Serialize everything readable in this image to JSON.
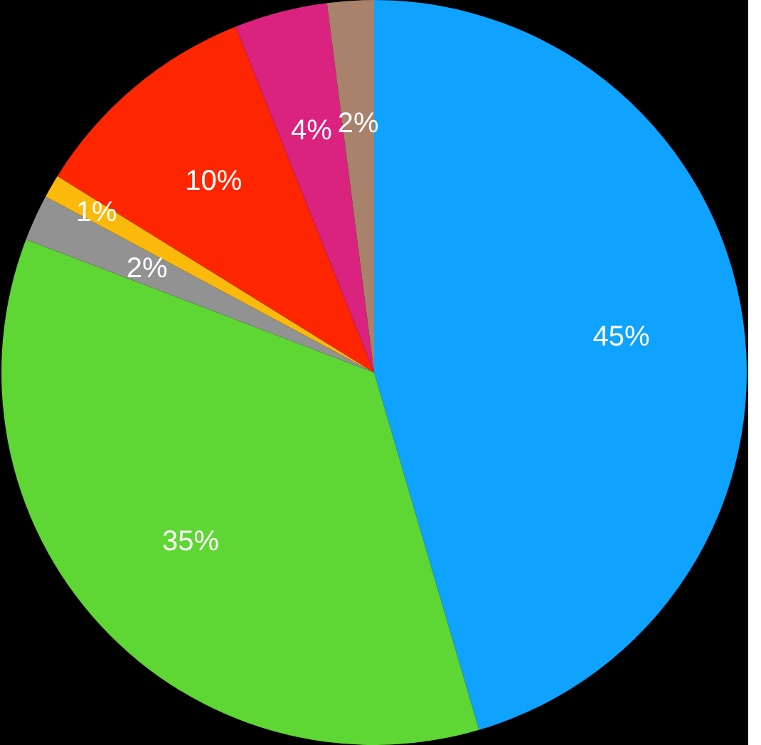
{
  "chart_data": {
    "type": "pie",
    "categories": [
      null,
      null,
      null,
      null,
      null,
      null,
      null
    ],
    "values": [
      45,
      35,
      2,
      1,
      10,
      4,
      2
    ],
    "colors": [
      "#0fa3ff",
      "#5ed634",
      "#929292",
      "#fbb90c",
      "#fe2600",
      "#d9237f",
      "#a8826a"
    ],
    "value_labels": [
      "45%",
      "35%",
      "2%",
      "1%",
      "10%",
      "4%",
      "2%"
    ]
  }
}
